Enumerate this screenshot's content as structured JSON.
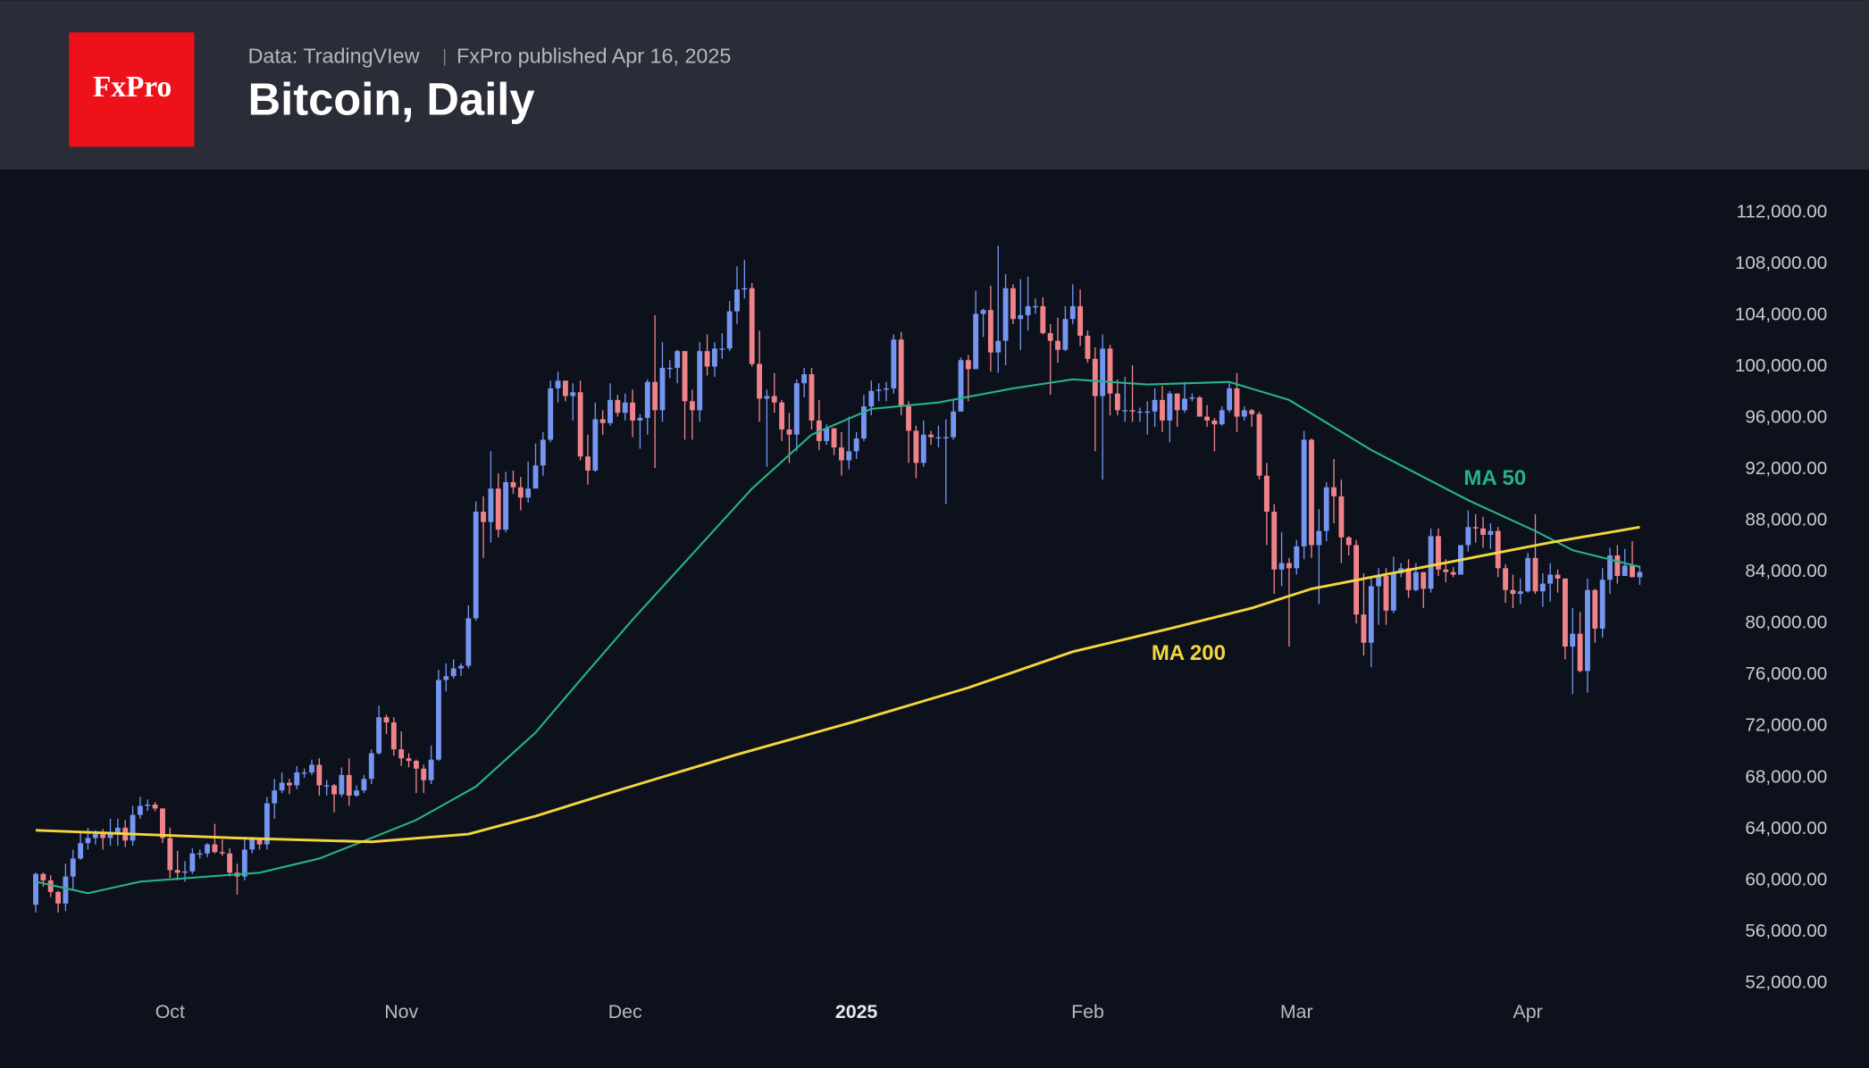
{
  "header": {
    "logo": "FxPro",
    "source": "Data: TradingVIew",
    "publisher": "FxPro published Apr 16, 2025"
  },
  "chart_data": {
    "type": "candlestick",
    "title": "Bitcoin, Daily",
    "up_color": "#7595f0",
    "down_color": "#f0838a",
    "grid": false,
    "xlim": [
      -4.79,
      222.4
    ],
    "xticks": [
      {
        "value": 18,
        "label": "Oct"
      },
      {
        "value": 49,
        "label": "Nov"
      },
      {
        "value": 79,
        "label": "Dec"
      },
      {
        "value": 110,
        "label": "2025"
      },
      {
        "value": 141,
        "label": "Feb"
      },
      {
        "value": 169,
        "label": "Mar"
      },
      {
        "value": 200,
        "label": "Apr"
      }
    ],
    "ylim": [
      45415,
      115344
    ],
    "yticks": [
      {
        "value": 52000,
        "label": "52,000.00"
      },
      {
        "value": 56000,
        "label": "56,000.00"
      },
      {
        "value": 60000,
        "label": "60,000.00"
      },
      {
        "value": 64000,
        "label": "64,000.00"
      },
      {
        "value": 68000,
        "label": "68,000.00"
      },
      {
        "value": 72000,
        "label": "72,000.00"
      },
      {
        "value": 76000,
        "label": "76,000.00"
      },
      {
        "value": 80000,
        "label": "80,000.00"
      },
      {
        "value": 84000,
        "label": "84,000.00"
      },
      {
        "value": 88000,
        "label": "88,000.00"
      },
      {
        "value": 92000,
        "label": "92,000.00"
      },
      {
        "value": 96000,
        "label": "96,000.00"
      },
      {
        "value": 100000,
        "label": "100,000.00"
      },
      {
        "value": 104000,
        "label": "104,000.00"
      },
      {
        "value": 108000,
        "label": "108,000.00"
      },
      {
        "value": 112000,
        "label": "112,000.00"
      }
    ],
    "open": [
      58100,
      60500,
      60000,
      59100,
      58200,
      60300,
      61700,
      62900,
      63300,
      63600,
      63300,
      63600,
      64100,
      63100,
      65100,
      65800,
      65900,
      65600,
      63300,
      60800,
      60600,
      60700,
      62100,
      62100,
      62800,
      62200,
      62100,
      60600,
      60300,
      62400,
      63200,
      62800,
      66000,
      67000,
      67600,
      67400,
      68400,
      68400,
      69000,
      67400,
      67400,
      66700,
      68200,
      66600,
      67000,
      67900,
      69900,
      72700,
      72300,
      70200,
      69500,
      69300,
      68700,
      67800,
      69400,
      75600,
      75900,
      76500,
      76700,
      80400,
      88700,
      87900,
      90500,
      87300,
      91000,
      90600,
      89800,
      90500,
      92300,
      94300,
      98300,
      98900,
      97700,
      98000,
      93000,
      91900,
      95900,
      95600,
      97400,
      96400,
      97200,
      95800,
      96000,
      98800,
      96600,
      99900,
      99900,
      101200,
      97300,
      96600,
      101200,
      100000,
      101400,
      101400,
      104300,
      106000,
      106100,
      100200,
      97500,
      97700,
      97200,
      95100,
      94700,
      98700,
      99400,
      95800,
      94200,
      95200,
      93700,
      92700,
      93400,
      94400,
      96900,
      98100,
      98200,
      98300,
      102100,
      96900,
      95000,
      92500,
      94700,
      94500,
      94500,
      94500,
      96500,
      100500,
      99800,
      104100,
      104400,
      101100,
      102000,
      106100,
      103700,
      104000,
      104700,
      104700,
      102600,
      102000,
      101300,
      103700,
      104700,
      102400,
      100600,
      97700,
      101400,
      97900,
      96600,
      96600,
      96500,
      96500,
      96500,
      97400,
      95800,
      97900,
      96600,
      97500,
      97600,
      96100,
      95800,
      95500,
      96600,
      98300,
      96100,
      96600,
      96300,
      91500,
      88700,
      84200,
      84700,
      84300,
      86000,
      94300,
      86100,
      87200,
      90600,
      89900,
      86700,
      86100,
      80700,
      78500,
      82900,
      83700,
      81000,
      83900,
      84300,
      82600,
      84000,
      82700,
      86800,
      84200,
      84000,
      83800,
      86100,
      87500,
      87400,
      86900,
      87200,
      84300,
      82600,
      82300,
      82500,
      85100,
      82500,
      83100,
      83800,
      83500,
      78200,
      79200,
      76300,
      82600,
      79600,
      83400,
      85300,
      83700,
      84500,
      83600
    ],
    "high": [
      60600,
      60600,
      60400,
      59200,
      61300,
      62400,
      63800,
      64100,
      63900,
      64000,
      64800,
      64800,
      64700,
      65800,
      66500,
      66300,
      66100,
      65600,
      64100,
      62300,
      61500,
      62500,
      62400,
      62900,
      64400,
      63200,
      62500,
      61300,
      63400,
      63400,
      63300,
      66500,
      67900,
      68400,
      67900,
      68900,
      68700,
      69400,
      69500,
      67800,
      67500,
      68800,
      69500,
      67400,
      68200,
      70200,
      73600,
      72900,
      72700,
      71600,
      69900,
      69400,
      69000,
      70500,
      76400,
      76900,
      77200,
      76900,
      81400,
      89500,
      89900,
      93400,
      91700,
      91800,
      91900,
      91400,
      92600,
      94000,
      94900,
      98900,
      99600,
      98900,
      98700,
      98900,
      94700,
      97200,
      96600,
      98700,
      97800,
      97900,
      98200,
      96300,
      99000,
      104000,
      101900,
      100500,
      101300,
      101200,
      98200,
      101900,
      102500,
      101900,
      102600,
      105100,
      107800,
      108300,
      106500,
      102800,
      98200,
      99500,
      97400,
      96400,
      99000,
      99900,
      99900,
      97400,
      95500,
      95200,
      94900,
      96100,
      94900,
      97800,
      98900,
      98700,
      98800,
      102500,
      102700,
      97300,
      95400,
      95800,
      95000,
      95400,
      95900,
      97400,
      100700,
      100900,
      105900,
      104500,
      106300,
      109400,
      107200,
      106400,
      106800,
      107000,
      105300,
      105400,
      103300,
      103800,
      104700,
      106400,
      106000,
      102800,
      101500,
      102500,
      101700,
      99000,
      99200,
      100100,
      96800,
      97300,
      98300,
      98500,
      98100,
      97900,
      98800,
      97900,
      97700,
      97000,
      96000,
      96900,
      98800,
      99500,
      96900,
      96700,
      96500,
      92500,
      89300,
      87100,
      85100,
      86500,
      95000,
      94400,
      88900,
      91000,
      92800,
      91200,
      86800,
      86500,
      83900,
      83600,
      84300,
      84300,
      85200,
      84700,
      85000,
      84700,
      84000,
      87400,
      87400,
      85000,
      84400,
      86100,
      88800,
      88500,
      88300,
      87800,
      87500,
      84600,
      83800,
      83500,
      85500,
      88500,
      83900,
      84700,
      84200,
      83500,
      81200,
      80900,
      83500,
      82700,
      84300,
      85900,
      86100,
      85800,
      86400,
      84500
    ],
    "low": [
      57500,
      59500,
      58700,
      57500,
      57600,
      59200,
      61600,
      62400,
      62800,
      62400,
      62700,
      62700,
      62600,
      62700,
      64800,
      65400,
      65400,
      62900,
      60200,
      60000,
      59900,
      60500,
      61700,
      61800,
      62100,
      61900,
      60300,
      58900,
      60000,
      62100,
      62400,
      62400,
      64800,
      66800,
      66700,
      67100,
      68000,
      68200,
      66600,
      66600,
      65300,
      66500,
      65800,
      66500,
      66800,
      67500,
      69800,
      71400,
      69700,
      68900,
      68800,
      66800,
      66800,
      67500,
      69300,
      74700,
      75700,
      75900,
      76500,
      80200,
      85100,
      86300,
      86700,
      87100,
      90100,
      88800,
      89400,
      90500,
      91500,
      94100,
      97200,
      97300,
      95800,
      92700,
      90800,
      91800,
      94700,
      95400,
      96100,
      95800,
      94500,
      93600,
      94700,
      92100,
      95700,
      99100,
      98700,
      94300,
      94300,
      95700,
      99300,
      99200,
      100600,
      101200,
      103300,
      105300,
      100000,
      95700,
      92200,
      96400,
      94200,
      92500,
      93400,
      97600,
      95100,
      93500,
      93900,
      93100,
      91500,
      92000,
      92800,
      94200,
      96200,
      97300,
      97300,
      97900,
      96200,
      92500,
      91300,
      92200,
      93900,
      93700,
      89300,
      94300,
      96500,
      97300,
      99800,
      102300,
      99600,
      99500,
      100100,
      103300,
      101300,
      102800,
      104100,
      102500,
      97800,
      100300,
      101200,
      103300,
      101600,
      100300,
      93400,
      91200,
      96200,
      96200,
      95700,
      95700,
      95700,
      94700,
      95300,
      94900,
      94100,
      95300,
      96400,
      97300,
      96100,
      95300,
      93400,
      95400,
      96400,
      94900,
      95800,
      95300,
      91200,
      86100,
      82300,
      82900,
      78200,
      83800,
      85000,
      85100,
      81500,
      86400,
      87800,
      84700,
      85300,
      80000,
      77500,
      76600,
      79900,
      79900,
      80800,
      83600,
      82000,
      82500,
      81200,
      82400,
      83700,
      83200,
      83600,
      83800,
      85600,
      86300,
      85900,
      85800,
      83600,
      81600,
      81200,
      81500,
      82400,
      82300,
      81300,
      81700,
      82400,
      77200,
      74500,
      76200,
      74600,
      78500,
      78900,
      82300,
      83100,
      83700,
      83600,
      83000
    ],
    "close": [
      60500,
      60000,
      59100,
      58200,
      60300,
      61700,
      62900,
      63300,
      63600,
      63300,
      63600,
      64100,
      63100,
      65100,
      65800,
      65900,
      65600,
      63300,
      60800,
      60600,
      60700,
      62100,
      62100,
      62800,
      62200,
      62100,
      60600,
      60300,
      62400,
      63200,
      62800,
      66000,
      67000,
      67600,
      67400,
      68400,
      68400,
      69000,
      67400,
      67400,
      66700,
      68200,
      66600,
      67000,
      67900,
      69900,
      72700,
      72300,
      70200,
      69500,
      69300,
      68700,
      67800,
      69400,
      75600,
      75900,
      76500,
      76700,
      80400,
      88700,
      87900,
      90500,
      87300,
      91000,
      90600,
      89800,
      90500,
      92300,
      94300,
      98300,
      98900,
      97700,
      98000,
      93000,
      91900,
      95900,
      95600,
      97400,
      96400,
      97200,
      95800,
      96000,
      98800,
      96600,
      99900,
      99900,
      101200,
      97300,
      96600,
      101200,
      100000,
      101400,
      101400,
      104300,
      106000,
      106100,
      100200,
      97500,
      97700,
      97200,
      95100,
      94700,
      98700,
      99400,
      95800,
      94200,
      95200,
      93700,
      92700,
      93400,
      94400,
      96900,
      98100,
      98200,
      98300,
      102100,
      96900,
      95000,
      92500,
      94700,
      94500,
      94500,
      94500,
      96500,
      100500,
      99800,
      104100,
      104400,
      101100,
      102000,
      106100,
      103700,
      104000,
      104700,
      104700,
      102600,
      102000,
      101300,
      103700,
      104700,
      102400,
      100600,
      97700,
      101400,
      97900,
      96600,
      96600,
      96500,
      96500,
      96500,
      97400,
      95800,
      97900,
      96600,
      97500,
      97600,
      96100,
      95800,
      95500,
      96600,
      98300,
      96100,
      96600,
      96300,
      91500,
      88700,
      84200,
      84700,
      84300,
      86000,
      94300,
      86100,
      87200,
      90600,
      89900,
      86700,
      86100,
      80700,
      78500,
      82900,
      83700,
      81000,
      83900,
      84300,
      82600,
      84000,
      82700,
      86800,
      84200,
      84000,
      83800,
      86100,
      87500,
      87400,
      86900,
      87200,
      84300,
      82600,
      82300,
      82500,
      85100,
      82500,
      83100,
      83800,
      83500,
      78200,
      79200,
      76300,
      82600,
      79600,
      83400,
      85300,
      83700,
      84500,
      83600,
      84000
    ],
    "series": [
      {
        "name": "MA 50",
        "color": "#27b286",
        "x": [
          0,
          7,
          14,
          30,
          38,
          45,
          51,
          59,
          67,
          73,
          80,
          88,
          96,
          104,
          112,
          121,
          131,
          139,
          149,
          160,
          168,
          179,
          192,
          201,
          206,
          215
        ],
        "values": [
          59900,
          59000,
          59900,
          60600,
          61700,
          63300,
          64700,
          67300,
          71500,
          75600,
          80300,
          85400,
          90500,
          94700,
          96700,
          97200,
          98300,
          99000,
          98600,
          98800,
          97400,
          93500,
          89600,
          87200,
          85700,
          84400
        ]
      },
      {
        "name": "MA 200",
        "color": "#f2d63c",
        "x": [
          0,
          27,
          45,
          58,
          67,
          78,
          94,
          110,
          125,
          139,
          152,
          163,
          171,
          187,
          203,
          215
        ],
        "values": [
          63900,
          63300,
          63000,
          63600,
          65000,
          67000,
          69800,
          72400,
          75000,
          77800,
          79600,
          81200,
          82700,
          84500,
          86300,
          87500
        ]
      }
    ]
  }
}
